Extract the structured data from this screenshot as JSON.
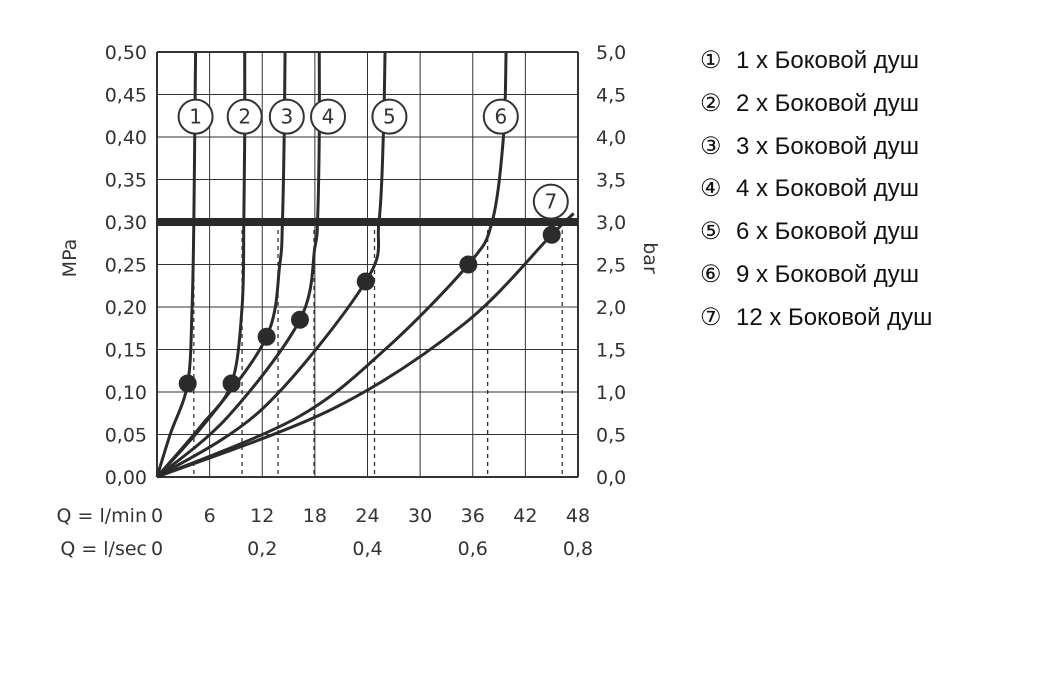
{
  "chart_data": {
    "type": "line",
    "x_unit_label": "Q = l/min",
    "x2_unit_label": "Q = l/sec",
    "ylabel_left": "MPa",
    "ylabel_right": "bar",
    "xlim": [
      0,
      48
    ],
    "ylim": [
      0,
      0.5
    ],
    "x_ticks": [
      "0",
      "6",
      "12",
      "18",
      "24",
      "30",
      "36",
      "42",
      "48"
    ],
    "x2_ticks": [
      {
        "value": 0,
        "label": "0"
      },
      {
        "value": 12,
        "label": "0,2"
      },
      {
        "value": 24,
        "label": "0,4"
      },
      {
        "value": 36,
        "label": "0,6"
      },
      {
        "value": 48,
        "label": "0,8"
      }
    ],
    "y_ticks_left": [
      "0,00",
      "0,05",
      "0,10",
      "0,15",
      "0,20",
      "0,25",
      "0,30",
      "0,35",
      "0,40",
      "0,45",
      "0,50"
    ],
    "y_ticks_right": [
      "0,0",
      "0,5",
      "1,0",
      "1,5",
      "2,0",
      "2,5",
      "3,0",
      "3,5",
      "4,0",
      "4,5",
      "5,0"
    ],
    "reference_line": 0.3,
    "grid": true,
    "series": [
      {
        "marker": "1",
        "points": [
          [
            0,
            0
          ],
          [
            1.5,
            0.05
          ],
          [
            3.5,
            0.11
          ],
          [
            4.0,
            0.2
          ],
          [
            4.2,
            0.3
          ],
          [
            4.3,
            0.4
          ],
          [
            4.4,
            0.5
          ]
        ],
        "dot": [
          3.5,
          0.11
        ],
        "drop_x": 4.2
      },
      {
        "marker": "2",
        "points": [
          [
            0,
            0
          ],
          [
            5,
            0.06
          ],
          [
            8.5,
            0.11
          ],
          [
            9.7,
            0.2
          ],
          [
            9.9,
            0.3
          ],
          [
            10.0,
            0.4
          ],
          [
            10.0,
            0.5
          ]
        ],
        "dot": [
          8.5,
          0.11
        ],
        "drop_x": 9.7
      },
      {
        "marker": "3",
        "points": [
          [
            0,
            0
          ],
          [
            6,
            0.07
          ],
          [
            12.5,
            0.165
          ],
          [
            14.0,
            0.25
          ],
          [
            14.3,
            0.3
          ],
          [
            14.5,
            0.4
          ],
          [
            14.6,
            0.5
          ]
        ],
        "dot": [
          12.5,
          0.165
        ],
        "drop_x": 13.8
      },
      {
        "marker": "4",
        "points": [
          [
            0,
            0
          ],
          [
            8,
            0.07
          ],
          [
            16.3,
            0.185
          ],
          [
            18.0,
            0.27
          ],
          [
            18.3,
            0.3
          ],
          [
            18.5,
            0.4
          ],
          [
            18.5,
            0.5
          ]
        ],
        "dot": [
          16.3,
          0.185
        ],
        "drop_x": 17.9
      },
      {
        "marker": "5",
        "points": [
          [
            0,
            0
          ],
          [
            12,
            0.08
          ],
          [
            23.8,
            0.23
          ],
          [
            25.3,
            0.3
          ],
          [
            25.8,
            0.4
          ],
          [
            26.0,
            0.5
          ]
        ],
        "dot": [
          23.8,
          0.23
        ],
        "drop_x": 24.8
      },
      {
        "marker": "6",
        "points": [
          [
            0,
            0
          ],
          [
            16,
            0.07
          ],
          [
            26,
            0.15
          ],
          [
            35.5,
            0.25
          ],
          [
            38.2,
            0.3
          ],
          [
            39.5,
            0.4
          ],
          [
            39.8,
            0.5
          ]
        ],
        "dot": [
          35.5,
          0.25
        ],
        "drop_x": 37.7
      },
      {
        "marker": "7",
        "points": [
          [
            0,
            0
          ],
          [
            20,
            0.08
          ],
          [
            35,
            0.18
          ],
          [
            45,
            0.285
          ],
          [
            47.5,
            0.31
          ]
        ],
        "dot": [
          45,
          0.285
        ],
        "drop_x": 46.2
      }
    ],
    "curve_labels": [
      {
        "marker": "1",
        "x": 4.4,
        "y": 0.424
      },
      {
        "marker": "2",
        "x": 10.0,
        "y": 0.424
      },
      {
        "marker": "3",
        "x": 14.8,
        "y": 0.424
      },
      {
        "marker": "4",
        "x": 19.5,
        "y": 0.424
      },
      {
        "marker": "5",
        "x": 26.5,
        "y": 0.424
      },
      {
        "marker": "6",
        "x": 39.2,
        "y": 0.424
      },
      {
        "marker": "7",
        "x": 44.9,
        "y": 0.324
      }
    ],
    "legend": [
      {
        "mark": "①",
        "text": "1 x Боковой душ"
      },
      {
        "mark": "②",
        "text": "2 x Боковой душ"
      },
      {
        "mark": "③",
        "text": "3 x Боковой душ"
      },
      {
        "mark": "④",
        "text": "4 x Боковой душ"
      },
      {
        "mark": "⑤",
        "text": "6 x Боковой душ"
      },
      {
        "mark": "⑥",
        "text": "9 x Боковой душ"
      },
      {
        "mark": "⑦",
        "text": "12 x Боковой душ"
      }
    ]
  }
}
